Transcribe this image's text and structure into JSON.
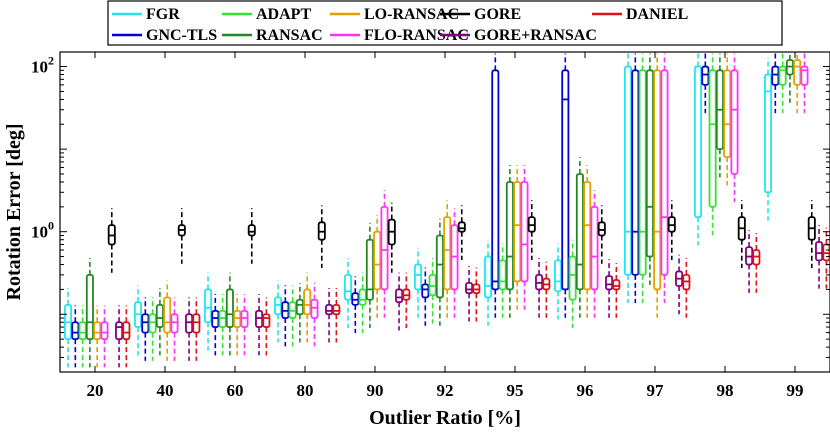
{
  "chart_data": {
    "type": "box",
    "xlabel": "Outlier Ratio [%]",
    "ylabel": "Rotation Error [deg]",
    "yscale": "log",
    "ylim": [
      0.02,
      150
    ],
    "y_ticks": [
      {
        "value": 1,
        "label": "10^0",
        "base": "10",
        "exp": "0"
      },
      {
        "value": 100,
        "label": "10^2",
        "base": "10",
        "exp": "2"
      }
    ],
    "categories": [
      "20",
      "40",
      "60",
      "80",
      "90",
      "92",
      "95",
      "96",
      "97",
      "98",
      "99"
    ],
    "legend_position": "top",
    "series": [
      {
        "name": "FGR",
        "color": "#22e5f0",
        "boxes": [
          [
            0.05,
            0.08,
            0.13
          ],
          [
            0.07,
            0.1,
            0.14
          ],
          [
            0.08,
            0.12,
            0.2
          ],
          [
            0.1,
            0.13,
            0.16
          ],
          [
            0.15,
            0.19,
            0.3
          ],
          [
            0.2,
            0.3,
            0.4
          ],
          [
            0.16,
            0.22,
            0.5
          ],
          [
            0.19,
            0.25,
            0.45
          ],
          [
            0.3,
            1,
            100
          ],
          [
            1.5,
            100,
            100
          ],
          [
            3,
            50,
            80
          ]
        ]
      },
      {
        "name": "GNC-TLS",
        "color": "#0000d0",
        "boxes": [
          [
            0.05,
            0.06,
            0.08
          ],
          [
            0.06,
            0.08,
            0.1
          ],
          [
            0.07,
            0.09,
            0.11
          ],
          [
            0.09,
            0.11,
            0.14
          ],
          [
            0.13,
            0.15,
            0.18
          ],
          [
            0.16,
            0.2,
            0.23
          ],
          [
            0.2,
            0.25,
            90
          ],
          [
            0.2,
            40,
            90
          ],
          [
            0.3,
            1,
            90
          ],
          [
            60,
            80,
            100
          ],
          [
            60,
            80,
            100
          ]
        ]
      },
      {
        "name": "ADAPT",
        "color": "#33e533",
        "boxes": [
          [
            0.05,
            0.06,
            0.08
          ],
          [
            0.06,
            0.08,
            0.1
          ],
          [
            0.07,
            0.09,
            0.11
          ],
          [
            0.09,
            0.11,
            0.14
          ],
          [
            0.13,
            0.15,
            0.2
          ],
          [
            0.17,
            0.22,
            0.3
          ],
          [
            0.2,
            0.25,
            0.45
          ],
          [
            0.15,
            0.3,
            0.5
          ],
          [
            0.3,
            1,
            90
          ],
          [
            2,
            20,
            90
          ],
          [
            60,
            90,
            100
          ]
        ]
      },
      {
        "name": "RANSAC",
        "color": "#228822",
        "boxes": [
          [
            0.05,
            0.08,
            0.3
          ],
          [
            0.07,
            0.09,
            0.13
          ],
          [
            0.07,
            0.1,
            0.2
          ],
          [
            0.1,
            0.13,
            0.15
          ],
          [
            0.15,
            0.2,
            0.8
          ],
          [
            0.16,
            0.4,
            0.9
          ],
          [
            0.2,
            0.5,
            4
          ],
          [
            0.2,
            0.4,
            5
          ],
          [
            0.5,
            2,
            90
          ],
          [
            10,
            30,
            90
          ],
          [
            80,
            100,
            120
          ]
        ]
      },
      {
        "name": "LO-RANSAC",
        "color": "#e5a000",
        "boxes": [
          [
            0.05,
            0.06,
            0.08
          ],
          [
            0.06,
            0.08,
            0.16
          ],
          [
            0.07,
            0.09,
            0.11
          ],
          [
            0.1,
            0.13,
            0.2
          ],
          [
            0.2,
            0.4,
            1
          ],
          [
            0.2,
            0.6,
            1.5
          ],
          [
            0.25,
            1.2,
            4
          ],
          [
            0.2,
            1.2,
            4
          ],
          [
            0.2,
            1,
            90
          ],
          [
            8,
            20,
            90
          ],
          [
            60,
            100,
            120
          ]
        ]
      },
      {
        "name": "FLO-RANSAC",
        "color": "#ff33ff",
        "boxes": [
          [
            0.05,
            0.06,
            0.08
          ],
          [
            0.06,
            0.08,
            0.1
          ],
          [
            0.07,
            0.09,
            0.11
          ],
          [
            0.09,
            0.12,
            0.15
          ],
          [
            0.2,
            0.6,
            2
          ],
          [
            0.2,
            0.5,
            1.2
          ],
          [
            0.25,
            0.7,
            4
          ],
          [
            0.2,
            0.5,
            2
          ],
          [
            0.3,
            1.5,
            90
          ],
          [
            5,
            30,
            90
          ],
          [
            60,
            90,
            100
          ]
        ]
      },
      {
        "name": "GORE",
        "color": "#000000",
        "boxes": [
          [
            0.7,
            0.9,
            1.2
          ],
          [
            0.9,
            1.05,
            1.2
          ],
          [
            0.9,
            1,
            1.2
          ],
          [
            0.8,
            1,
            1.3
          ],
          [
            0.7,
            1,
            1.4
          ],
          [
            1,
            1.1,
            1.3
          ],
          [
            1,
            1.2,
            1.5
          ],
          [
            0.9,
            1.05,
            1.3
          ],
          [
            1,
            1.2,
            1.5
          ],
          [
            0.8,
            1.1,
            1.5
          ],
          [
            0.8,
            1.1,
            1.5
          ]
        ]
      },
      {
        "name": "GORE+RANSAC",
        "color": "#800080",
        "boxes": [
          [
            0.05,
            0.07,
            0.08
          ],
          [
            0.06,
            0.08,
            0.1
          ],
          [
            0.07,
            0.09,
            0.11
          ],
          [
            0.1,
            0.11,
            0.13
          ],
          [
            0.14,
            0.16,
            0.2
          ],
          [
            0.18,
            0.2,
            0.24
          ],
          [
            0.2,
            0.24,
            0.3
          ],
          [
            0.2,
            0.23,
            0.29
          ],
          [
            0.22,
            0.27,
            0.33
          ],
          [
            0.4,
            0.5,
            0.65
          ],
          [
            0.45,
            0.55,
            0.75
          ]
        ]
      },
      {
        "name": "DANIEL",
        "color": "#dd1111",
        "boxes": [
          [
            0.05,
            0.06,
            0.08
          ],
          [
            0.06,
            0.08,
            0.1
          ],
          [
            0.07,
            0.09,
            0.1
          ],
          [
            0.1,
            0.11,
            0.13
          ],
          [
            0.15,
            0.17,
            0.2
          ],
          [
            0.18,
            0.2,
            0.23
          ],
          [
            0.2,
            0.23,
            0.27
          ],
          [
            0.2,
            0.22,
            0.26
          ],
          [
            0.2,
            0.25,
            0.3
          ],
          [
            0.4,
            0.5,
            0.6
          ],
          [
            0.45,
            0.55,
            0.7
          ]
        ]
      }
    ]
  }
}
